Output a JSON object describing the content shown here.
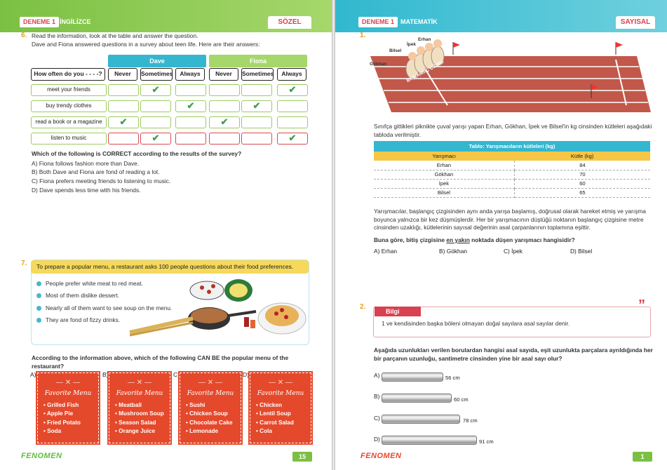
{
  "left": {
    "header": {
      "series": "DENEME 1",
      "subject": "İNGİLİZCE",
      "section": "SÖZEL"
    },
    "q6": {
      "num": "6.",
      "intro1": "Read the information, look at the table and answer the question.",
      "intro2": "Dave and Fiona answered questions in a survey about teen life. Here are their answers:",
      "dave": "Dave",
      "fiona": "Fiona",
      "question_cell": "How often do you - - - -?",
      "freq": [
        "Never",
        "Sometimes",
        "Always",
        "Never",
        "Sometimes",
        "Always"
      ],
      "rows": [
        {
          "label": "meet your friends",
          "checks": [
            "",
            "✔",
            "",
            "",
            "",
            "✔"
          ]
        },
        {
          "label": "buy trendy clothes",
          "checks": [
            "",
            "",
            "✔",
            "",
            "✔",
            ""
          ]
        },
        {
          "label": "read a book or a magazine",
          "checks": [
            "✔",
            "",
            "",
            "✔",
            "",
            ""
          ]
        },
        {
          "label": "listen to music",
          "checks": [
            "",
            "✔",
            "",
            "",
            "",
            "✔"
          ]
        }
      ],
      "question": "Which of the following is CORRECT according to the results of the survey?",
      "options": [
        "A) Fiona follows fashion more than Dave.",
        "B) Both Dave and Fiona are fond of reading a lot.",
        "C) Fiona prefers meeting friends to listening to music.",
        "D) Dave spends less time with his friends."
      ]
    },
    "q7": {
      "num": "7.",
      "intro": "To prepare a popular menu, a restaurant asks 100 people questions about their food preferences.",
      "bullets": [
        "People prefer white meat to red meat.",
        "Most of them dislike dessert.",
        "Nearly all of them want to see soup on the menu.",
        "They are fond of fizzy drinks."
      ],
      "question1": "According to the information above, which of the following CAN BE the popular menu of the",
      "question2": "restaurant?",
      "menus": [
        {
          "letter": "A)",
          "title": "Favorite Menu",
          "items": [
            "Grilled Fish",
            "Apple Pie",
            "Fried Potato",
            "Soda"
          ]
        },
        {
          "letter": "B)",
          "title": "Favorite Menu",
          "items": [
            "Meatball",
            "Mushroom Soup",
            "Season Salad",
            "Orange Juice"
          ]
        },
        {
          "letter": "C)",
          "title": "Favorite Menu",
          "items": [
            "Sushi",
            "Chicken Soup",
            "Chocolate Cake",
            "Lemonade"
          ]
        },
        {
          "letter": "D)",
          "title": "Favorite Menu",
          "items": [
            "Chicken",
            "Lentil Soup",
            "Carrot Salad",
            "Cola"
          ]
        }
      ]
    },
    "footer": {
      "logo": "FENOMEN",
      "page": "15"
    }
  },
  "right": {
    "header": {
      "series": "DENEME 1",
      "subject": "MATEMATİK",
      "section": "SAYISAL"
    },
    "q1": {
      "num": "1.",
      "names": [
        "Erhan",
        "İpek",
        "Bilsel",
        "Gökhan"
      ],
      "start_label": "BAŞLANGIÇ ÇİZGİSİ",
      "intro": "Sınıfça gittikleri piknikte çuval yarışı yapan Erhan, Gökhan, İpek ve Bilsel'in kg cinsinden kütleleri aşağıdaki tabloda verilmiştir.",
      "table_caption": "Tablo: Yarışmacıların kütleleri (kg)",
      "col1": "Yarışmacı",
      "col2": "Kütle (kg)",
      "rows": [
        {
          "name": "Erhan",
          "mass": "84"
        },
        {
          "name": "Gökhan",
          "mass": "70"
        },
        {
          "name": "İpek",
          "mass": "60"
        },
        {
          "name": "Bilsel",
          "mass": "65"
        }
      ],
      "para": "Yarışmacılar, başlangıç çizgisinden aynı anda yarışa başlamış, doğrusal olarak hareket etmiş ve yarışma boyunca yalnızca bir kez düşmüşlerdir. Her bir yarışmacının düştüğü noktanın başlangıç çizgisine metre cinsinden uzaklığı, kütlelerinin sayısal değerinin asal çarpanlarının toplamına eşittir.",
      "question_pre": "Buna göre, bitiş çizgisine ",
      "question_em": "en yakın",
      "question_post": " noktada düşen yarışmacı hangisidir?",
      "options": [
        "A) Erhan",
        "B) Gökhan",
        "C) İpek",
        "D) Bilsel"
      ]
    },
    "q2": {
      "num": "2.",
      "bilgi_title": "Bilgi",
      "bilgi_text": "1 ve kendisinden başka böleni olmayan doğal sayılara asal sayılar denir.",
      "question": "Aşağıda uzunlukları verilen borulardan hangisi asal sayıda, eşit uzunlukta parçalara ayrıldığında her bir parçanın uzunluğu, santimetre cinsinden yine bir asal sayı olur?",
      "options": [
        {
          "letter": "A)",
          "length": "56 cm"
        },
        {
          "letter": "B)",
          "length": "60 cm"
        },
        {
          "letter": "C)",
          "length": "78 cm"
        },
        {
          "letter": "D)",
          "length": "91 cm"
        }
      ]
    },
    "footer": {
      "logo": "FENOMEN",
      "page": "1"
    }
  },
  "colors": {
    "green": "#7bc043",
    "cyan": "#30b8cf",
    "red": "#e5492b",
    "yellow": "#f6d95a"
  }
}
